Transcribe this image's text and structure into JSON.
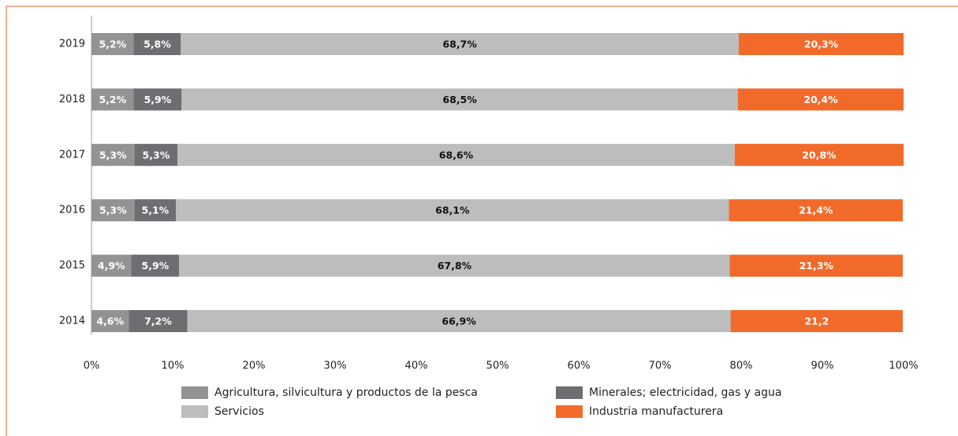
{
  "chart_data": {
    "type": "stacked_barh",
    "categories": [
      "2019",
      "2018",
      "2017",
      "2016",
      "2015",
      "2014"
    ],
    "series": [
      {
        "name": "Agricultura, silvicultura y productos de la pesca",
        "color": "#939393",
        "values": [
          5.2,
          5.2,
          5.3,
          5.3,
          4.9,
          4.6
        ],
        "value_labels": [
          "5,2%",
          "5,2%",
          "5,3%",
          "5,3%",
          "4,9%",
          "4,6%"
        ]
      },
      {
        "name": "Minerales; electricidad, gas y agua",
        "color": "#6d6e71",
        "values": [
          5.8,
          5.9,
          5.3,
          5.1,
          5.9,
          7.2
        ],
        "value_labels": [
          "5,8%",
          "5,9%",
          "5,3%",
          "5,1%",
          "5,9%",
          "7,2%"
        ]
      },
      {
        "name": "Servicios",
        "color": "#bdbdbd",
        "values": [
          68.7,
          68.5,
          68.6,
          68.1,
          67.8,
          66.9
        ],
        "value_labels": [
          "68,7%",
          "68,5%",
          "68,6%",
          "68,1%",
          "67,8%",
          "66,9%"
        ]
      },
      {
        "name": "Industria manufacturera",
        "color": "#f26a2a",
        "values": [
          20.3,
          20.4,
          20.8,
          21.4,
          21.3,
          21.2
        ],
        "value_labels": [
          "20,3%",
          "20,4%",
          "20,8%",
          "21,4%",
          "21,3%",
          "21,2"
        ]
      }
    ],
    "xlim": [
      0,
      100
    ],
    "xticks": [
      {
        "value": 0,
        "label": "0%"
      },
      {
        "value": 10,
        "label": "10%"
      },
      {
        "value": 20,
        "label": "20%"
      },
      {
        "value": 30,
        "label": "30%"
      },
      {
        "value": 40,
        "label": "40%"
      },
      {
        "value": 50,
        "label": "50%"
      },
      {
        "value": 60,
        "label": "60%"
      },
      {
        "value": 70,
        "label": "70%"
      },
      {
        "value": 80,
        "label": "80%"
      },
      {
        "value": 90,
        "label": "90%"
      },
      {
        "value": 100,
        "label": "100%"
      }
    ],
    "legend": "bottom"
  }
}
